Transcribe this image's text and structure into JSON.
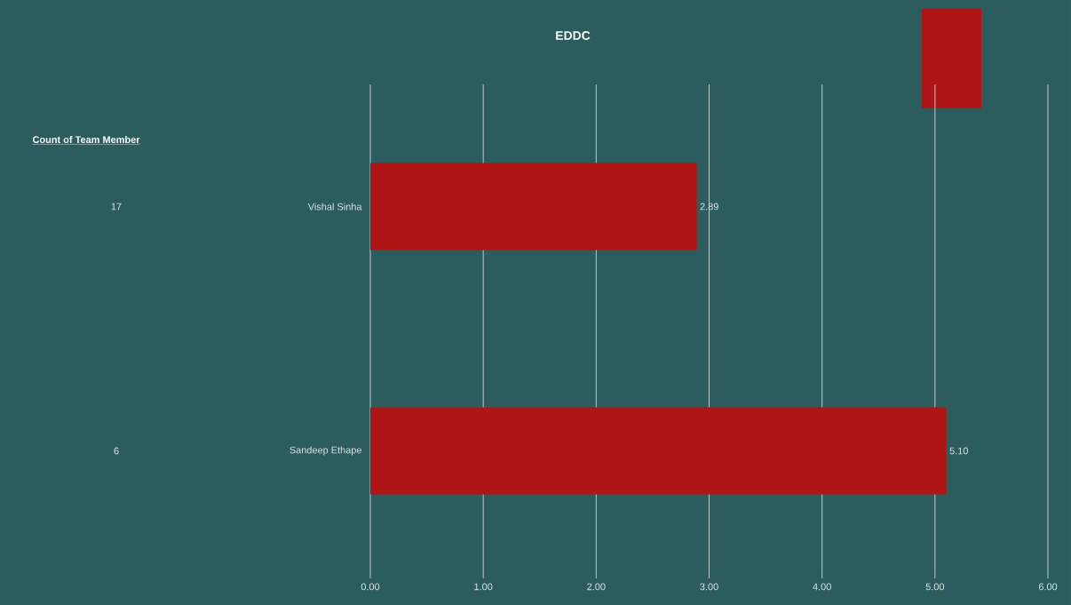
{
  "chart_data": {
    "type": "bar",
    "orientation": "horizontal",
    "title": "EDDC",
    "categories": [
      "Vishal Sinha",
      "Sandeep Ethape"
    ],
    "values": [
      2.89,
      5.1
    ],
    "value_labels": [
      "2.89",
      "5.10"
    ],
    "color": "#b01515",
    "xlim": [
      0,
      6
    ],
    "xticks": [
      {
        "value": 0,
        "label": "0.00"
      },
      {
        "value": 1,
        "label": "1.00"
      },
      {
        "value": 2,
        "label": "2.00"
      },
      {
        "value": 3,
        "label": "3.00"
      },
      {
        "value": 4,
        "label": "4.00"
      },
      {
        "value": 5,
        "label": "5.00"
      },
      {
        "value": 6,
        "label": "6.00"
      }
    ],
    "grid": "x",
    "annotations": [
      "Count of Team Member",
      "17",
      "6"
    ]
  }
}
